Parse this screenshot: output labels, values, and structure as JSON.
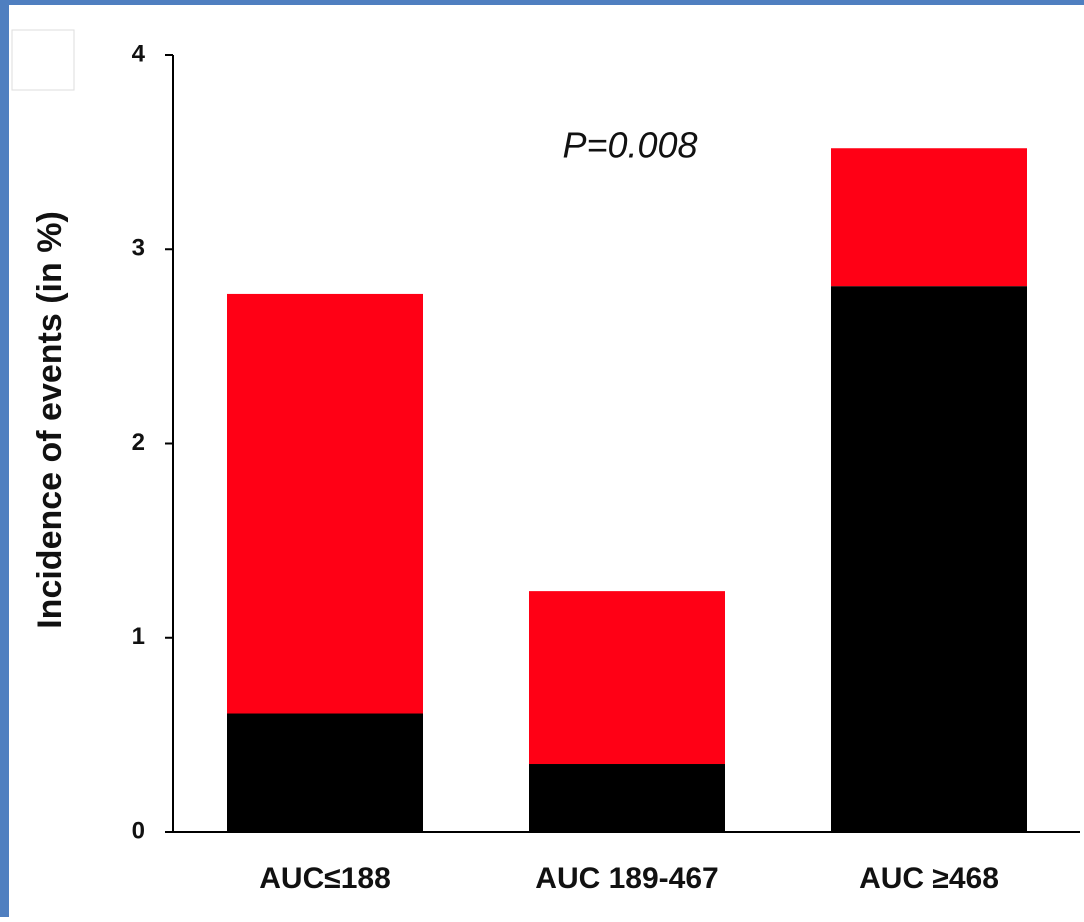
{
  "chart_data": {
    "type": "stacked-bar",
    "ylabel": "Incidence of events (in %)",
    "annotation": "P=0.008",
    "categories": [
      "AUC≤188",
      "AUC 189-467",
      "AUC ≥468"
    ],
    "series": [
      {
        "color": "#000000",
        "values": [
          0.61,
          0.35,
          2.81
        ]
      },
      {
        "color": "#ff0015",
        "values": [
          2.16,
          0.89,
          0.71
        ]
      }
    ],
    "ylim": [
      0,
      4
    ],
    "yticks": [
      0,
      1,
      2,
      3,
      4
    ]
  }
}
